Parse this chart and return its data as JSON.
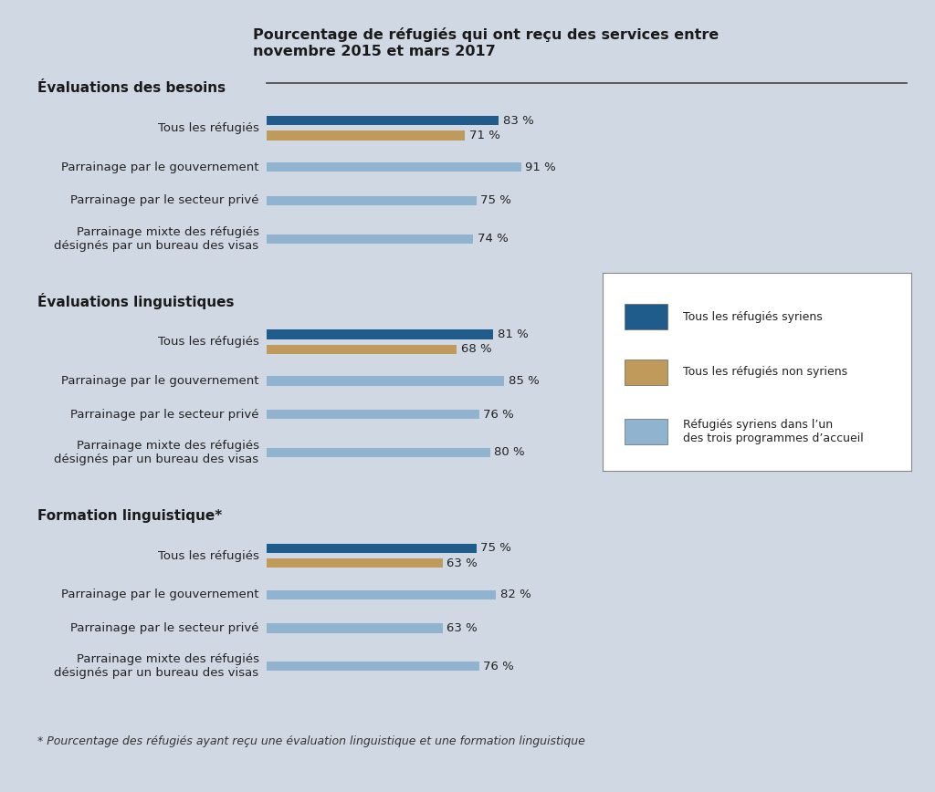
{
  "title": "Pourcentage de réfugiés qui ont reçu des services entre\nnovembre 2015 et mars 2017",
  "background_color": "#d0d8e4",
  "sections": [
    {
      "heading": "Évaluations des besoins",
      "rows": [
        {
          "label": "Tous les réfugiés",
          "syrian": 83,
          "non_syrian": 71,
          "program": null
        },
        {
          "label": "Parrainage par le gouvernement",
          "syrian": null,
          "non_syrian": null,
          "program": 91
        },
        {
          "label": "Parrainage par le secteur privé",
          "syrian": null,
          "non_syrian": null,
          "program": 75
        },
        {
          "label": "Parrainage mixte des réfugiés\ndésignés par un bureau des visas",
          "syrian": null,
          "non_syrian": null,
          "program": 74
        }
      ]
    },
    {
      "heading": "Évaluations linguistiques",
      "rows": [
        {
          "label": "Tous les réfugiés",
          "syrian": 81,
          "non_syrian": 68,
          "program": null
        },
        {
          "label": "Parrainage par le gouvernement",
          "syrian": null,
          "non_syrian": null,
          "program": 85
        },
        {
          "label": "Parrainage par le secteur privé",
          "syrian": null,
          "non_syrian": null,
          "program": 76
        },
        {
          "label": "Parrainage mixte des réfugiés\ndésignés par un bureau des visas",
          "syrian": null,
          "non_syrian": null,
          "program": 80
        }
      ]
    },
    {
      "heading": "Formation linguistique*",
      "rows": [
        {
          "label": "Tous les réfugiés",
          "syrian": 75,
          "non_syrian": 63,
          "program": null
        },
        {
          "label": "Parrainage par le gouvernement",
          "syrian": null,
          "non_syrian": null,
          "program": 82
        },
        {
          "label": "Parrainage par le secteur privé",
          "syrian": null,
          "non_syrian": null,
          "program": 63
        },
        {
          "label": "Parrainage mixte des réfugiés\ndésignés par un bureau des visas",
          "syrian": null,
          "non_syrian": null,
          "program": 76
        }
      ]
    }
  ],
  "colors": {
    "syrian": "#1f5c8b",
    "non_syrian": "#c09a5b",
    "program": "#90b4d0"
  },
  "legend_labels": [
    "Tous les réfugiés syriens",
    "Tous les réfugiés non syriens",
    "Réfugiés syriens dans l’un\ndes trois programmes d’accueil"
  ],
  "footnote": "* Pourcentage des réfugiés ayant reçu une évaluation linguistique et une formation linguistique",
  "label_fontsize": 9.5,
  "heading_fontsize": 11,
  "title_fontsize": 11.5,
  "footnote_fontsize": 9,
  "value_fontsize": 9.5
}
